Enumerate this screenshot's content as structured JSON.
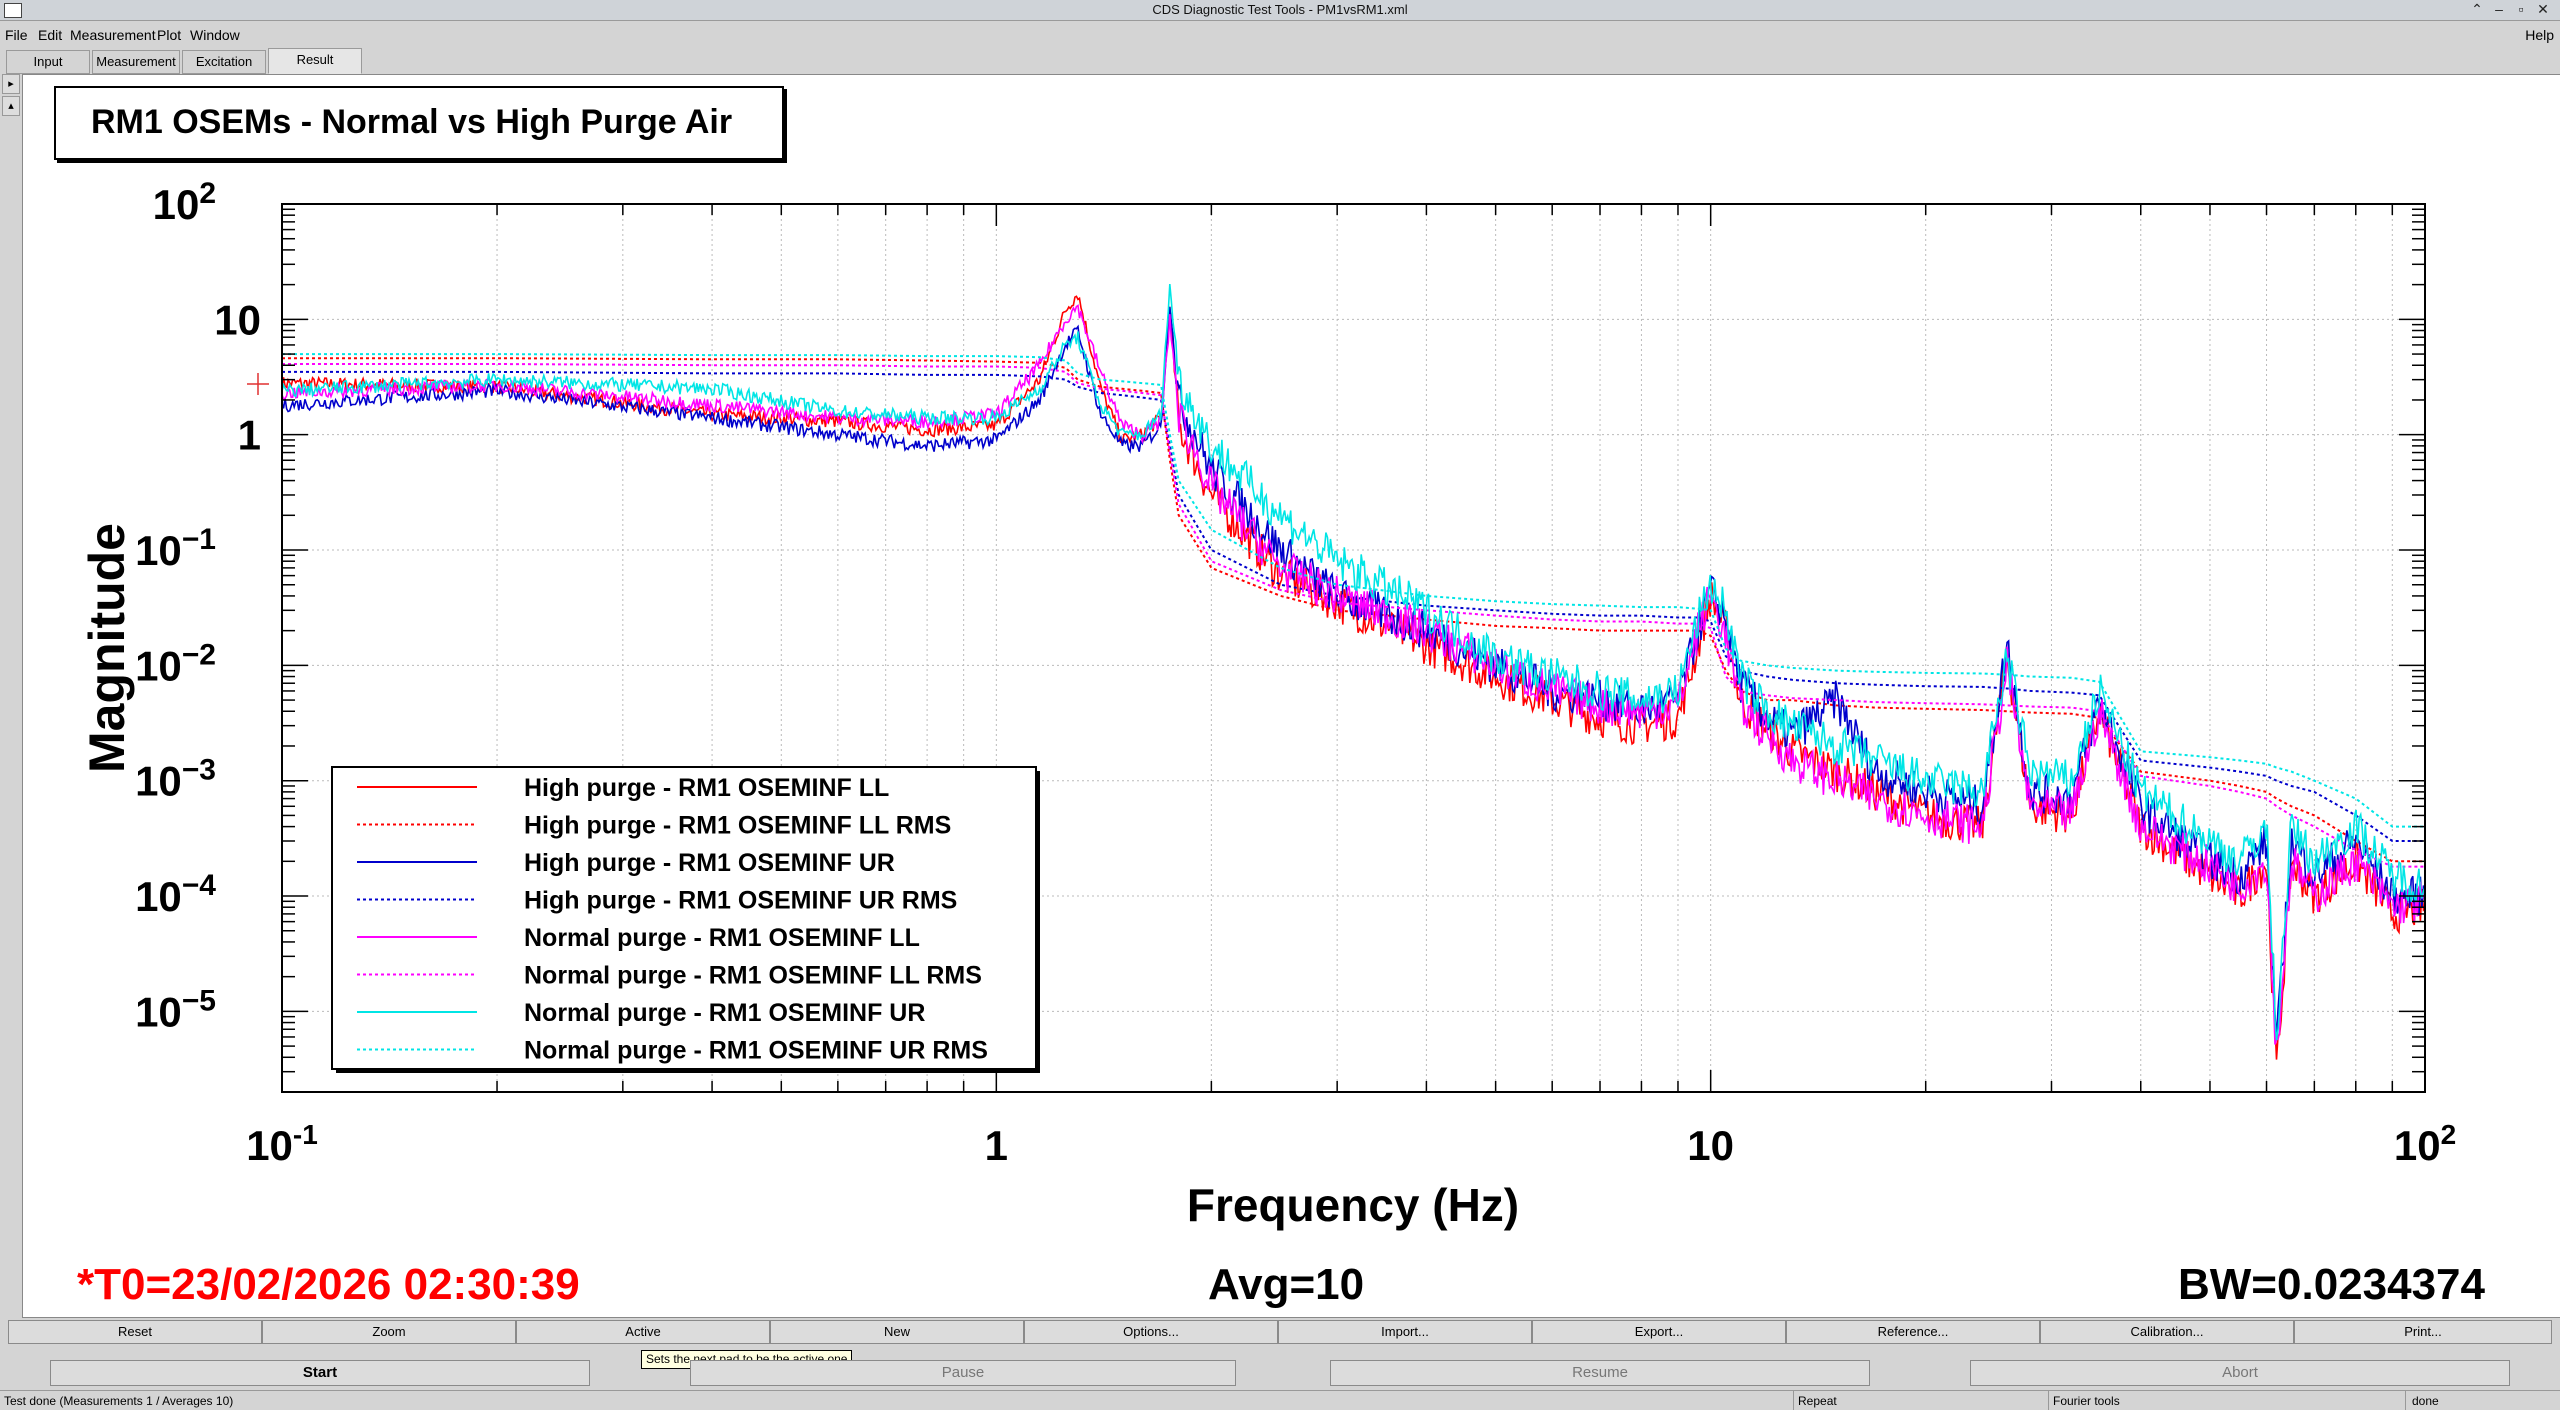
{
  "window": {
    "title": "CDS Diagnostic Test Tools - PM1vsRM1.xml",
    "help": "Help"
  },
  "menu": [
    "File",
    "Edit",
    "Measurement",
    "Plot",
    "Window"
  ],
  "tabs": [
    "Input",
    "Measurement",
    "Excitation",
    "Result"
  ],
  "plot": {
    "title_box": "RM1 OSEMs - Normal vs High Purge Air",
    "t0": "*T0=23/02/2026 02:30:39",
    "avg": "Avg=10",
    "bw": "BW=0.0234374"
  },
  "chart_data": {
    "type": "line",
    "title": "RM1 OSEMs - Normal vs High Purge Air",
    "xlabel": "Frequency (Hz)",
    "ylabel": "Magnitude",
    "xscale": "log",
    "yscale": "log",
    "xlim": [
      0.1,
      100
    ],
    "ylim": [
      2e-06,
      100
    ],
    "grid": true,
    "legend_position": "bottom-left",
    "x_ticks": [
      "10",
      "-1",
      "1",
      "10",
      "10",
      "2"
    ],
    "y_ticks": [
      {
        "base": "10",
        "exp": "2"
      },
      {
        "base": "10",
        "exp": ""
      },
      {
        "base": "1",
        "exp": ""
      },
      {
        "base": "10",
        "exp": "−1"
      },
      {
        "base": "10",
        "exp": "−2"
      },
      {
        "base": "10",
        "exp": "−3"
      },
      {
        "base": "10",
        "exp": "−4"
      },
      {
        "base": "10",
        "exp": "−5"
      }
    ],
    "x": [
      0.1,
      0.2,
      0.4,
      0.6,
      0.8,
      1.0,
      1.15,
      1.25,
      1.3,
      1.4,
      1.5,
      1.6,
      1.7,
      1.75,
      1.8,
      2.0,
      2.5,
      3.0,
      4.0,
      5.0,
      6.0,
      7.0,
      8.0,
      9.0,
      9.6,
      10.0,
      10.5,
      11.0,
      12.0,
      13.0,
      15.0,
      17.0,
      20.0,
      24.0,
      26.0,
      28.0,
      32.0,
      35.0,
      40.0,
      50.0,
      55.0,
      60.0,
      62.0,
      65.0,
      70.0,
      80.0,
      90.0,
      100.0
    ],
    "series": [
      {
        "name": "High purge - RM1 OSEMINF LL",
        "color": "#ff0000",
        "style": "solid",
        "values": [
          2.8,
          2.6,
          1.5,
          1.3,
          1.1,
          1.2,
          3.0,
          12,
          17,
          2.5,
          0.9,
          1.0,
          1.4,
          12,
          1.2,
          0.3,
          0.06,
          0.035,
          0.015,
          0.008,
          0.005,
          0.0035,
          0.003,
          0.0035,
          0.015,
          0.04,
          0.02,
          0.005,
          0.0028,
          0.0018,
          0.0012,
          0.0008,
          0.0005,
          0.0004,
          0.012,
          0.0006,
          0.0005,
          0.004,
          0.0004,
          0.00015,
          0.0001,
          0.0002,
          3e-06,
          0.0002,
          0.0001,
          0.0002,
          7e-05,
          8e-05
        ]
      },
      {
        "name": "High purge - RM1 OSEMINF LL RMS",
        "color": "#ff0000",
        "style": "dotted",
        "values": [
          4.6,
          4.6,
          4.5,
          4.5,
          4.4,
          4.3,
          4.2,
          3.8,
          3.0,
          2.6,
          2.5,
          2.4,
          2.3,
          0.6,
          0.2,
          0.07,
          0.04,
          0.03,
          0.025,
          0.022,
          0.021,
          0.02,
          0.02,
          0.02,
          0.02,
          0.018,
          0.009,
          0.006,
          0.005,
          0.005,
          0.0045,
          0.0043,
          0.0042,
          0.0041,
          0.004,
          0.0039,
          0.0038,
          0.0035,
          0.0012,
          0.001,
          0.0009,
          0.0008,
          0.0007,
          0.0006,
          0.0005,
          0.0003,
          0.0002,
          0.0002
        ]
      },
      {
        "name": "High purge - RM1 OSEMINF UR",
        "color": "#0000cc",
        "style": "solid",
        "values": [
          1.8,
          2.4,
          1.4,
          1.0,
          0.8,
          0.9,
          2.0,
          6,
          8,
          1.5,
          0.8,
          0.8,
          1.2,
          15,
          2.0,
          0.5,
          0.1,
          0.04,
          0.02,
          0.01,
          0.006,
          0.005,
          0.004,
          0.005,
          0.02,
          0.045,
          0.025,
          0.007,
          0.0035,
          0.0025,
          0.005,
          0.0012,
          0.0008,
          0.0006,
          0.015,
          0.0008,
          0.0007,
          0.005,
          0.0006,
          0.0002,
          0.00015,
          0.0003,
          5e-06,
          0.0003,
          0.00015,
          0.0003,
          0.0001,
          0.0001
        ]
      },
      {
        "name": "High purge - RM1 OSEMINF UR RMS",
        "color": "#0000cc",
        "style": "dotted",
        "values": [
          3.5,
          3.5,
          3.4,
          3.4,
          3.3,
          3.3,
          3.2,
          3.0,
          2.6,
          2.3,
          2.2,
          2.1,
          2.0,
          0.8,
          0.3,
          0.1,
          0.05,
          0.04,
          0.033,
          0.03,
          0.028,
          0.027,
          0.027,
          0.026,
          0.026,
          0.024,
          0.012,
          0.009,
          0.008,
          0.0075,
          0.007,
          0.0068,
          0.0066,
          0.0065,
          0.0063,
          0.006,
          0.0058,
          0.0055,
          0.0015,
          0.0013,
          0.0012,
          0.0011,
          0.001,
          0.0009,
          0.0008,
          0.0005,
          0.0003,
          0.0003
        ]
      },
      {
        "name": "Normal purge - RM1 OSEMINF LL",
        "color": "#ff00ff",
        "style": "solid",
        "values": [
          2.3,
          2.7,
          1.8,
          1.4,
          1.3,
          1.5,
          4.0,
          10,
          13,
          3.5,
          1.2,
          1.0,
          1.3,
          10,
          1.5,
          0.35,
          0.07,
          0.04,
          0.02,
          0.01,
          0.006,
          0.0045,
          0.004,
          0.0045,
          0.02,
          0.04,
          0.018,
          0.0045,
          0.0025,
          0.0015,
          0.001,
          0.0007,
          0.0005,
          0.0004,
          0.01,
          0.0006,
          0.0005,
          0.004,
          0.0004,
          0.00018,
          0.00012,
          0.0002,
          4e-06,
          0.0002,
          0.0001,
          0.0002,
          8e-05,
          9e-05
        ]
      },
      {
        "name": "Normal purge - RM1 OSEMINF LL RMS",
        "color": "#ff00ff",
        "style": "dotted",
        "values": [
          4.1,
          4.1,
          4.0,
          4.0,
          3.9,
          3.9,
          3.8,
          3.5,
          2.8,
          2.5,
          2.4,
          2.3,
          2.2,
          0.7,
          0.25,
          0.08,
          0.045,
          0.035,
          0.03,
          0.027,
          0.025,
          0.024,
          0.024,
          0.023,
          0.023,
          0.021,
          0.008,
          0.006,
          0.0055,
          0.0052,
          0.005,
          0.0048,
          0.0047,
          0.0046,
          0.0045,
          0.0044,
          0.0043,
          0.004,
          0.0011,
          0.0009,
          0.0008,
          0.0007,
          0.0006,
          0.0005,
          0.0004,
          0.00025,
          0.00018,
          0.00018
        ]
      },
      {
        "name": "Normal purge - RM1 OSEMINF UR",
        "color": "#00e5e5",
        "style": "solid",
        "values": [
          2.4,
          3.0,
          2.5,
          1.6,
          1.4,
          1.4,
          2.5,
          6,
          7,
          1.8,
          1.0,
          1.0,
          1.5,
          20,
          3.0,
          0.8,
          0.2,
          0.08,
          0.03,
          0.012,
          0.008,
          0.006,
          0.005,
          0.006,
          0.025,
          0.05,
          0.03,
          0.008,
          0.004,
          0.003,
          0.002,
          0.0015,
          0.001,
          0.0008,
          0.012,
          0.0012,
          0.001,
          0.006,
          0.0008,
          0.0003,
          0.0002,
          0.0004,
          6e-06,
          0.0004,
          0.0002,
          0.0004,
          0.00015,
          0.00012
        ]
      },
      {
        "name": "Normal purge - RM1 OSEMINF UR RMS",
        "color": "#00e5e5",
        "style": "dotted",
        "values": [
          5.0,
          5.0,
          4.9,
          4.9,
          4.8,
          4.8,
          4.7,
          4.4,
          3.4,
          3.0,
          2.9,
          2.8,
          2.7,
          1.0,
          0.4,
          0.15,
          0.07,
          0.05,
          0.04,
          0.036,
          0.034,
          0.033,
          0.032,
          0.032,
          0.031,
          0.03,
          0.014,
          0.011,
          0.01,
          0.0095,
          0.009,
          0.0088,
          0.0086,
          0.0085,
          0.0083,
          0.008,
          0.0078,
          0.0072,
          0.0018,
          0.0016,
          0.0015,
          0.0014,
          0.0013,
          0.0012,
          0.001,
          0.0007,
          0.0004,
          0.0004
        ]
      }
    ]
  },
  "buttons": [
    "Reset",
    "Zoom",
    "Active",
    "New",
    "Options...",
    "Import...",
    "Export...",
    "Reference...",
    "Calibration...",
    "Print..."
  ],
  "tooltip": "Sets the next pad to be the active one",
  "controls": [
    "Start",
    "Pause",
    "Resume",
    "Abort"
  ],
  "status": {
    "left": "Test done (Measurements 1 / Averages 10)",
    "repeat": "Repeat",
    "fourier": "Fourier tools",
    "state": "done"
  }
}
